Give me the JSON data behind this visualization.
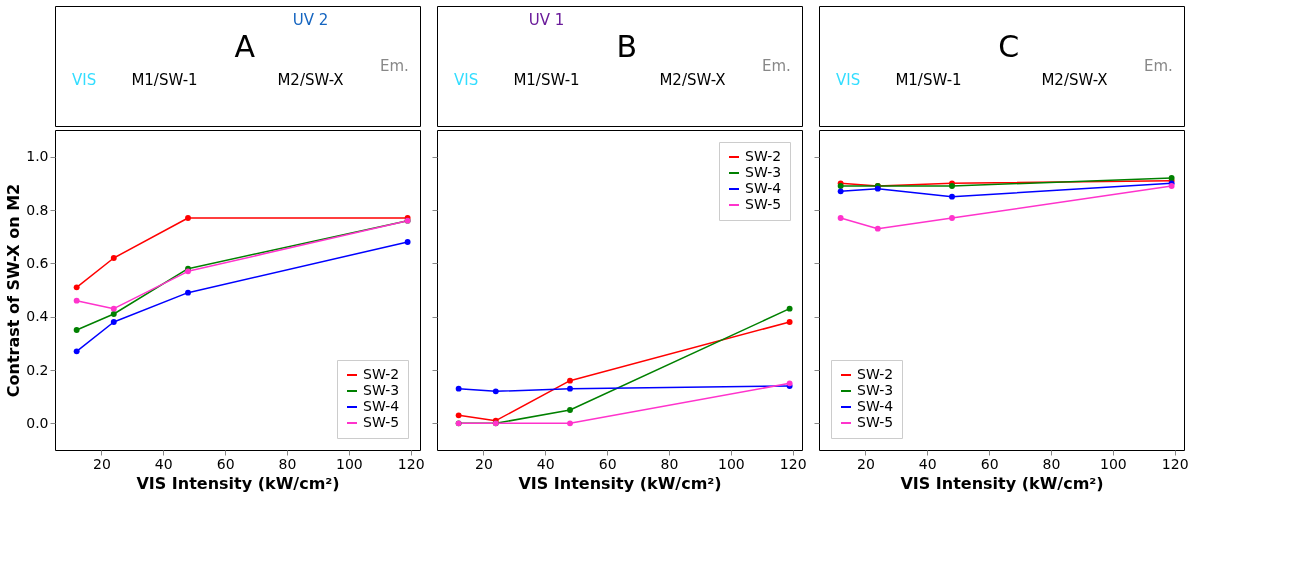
{
  "chart_data": [
    {
      "type": "line",
      "title": "A",
      "annotations": [
        "VIS",
        "M1/SW-1",
        "M2/SW-X",
        "Em.",
        "UV 2"
      ],
      "xlabel": "VIS Intensity (kW/cm²)",
      "ylabel": "Contrast of SW-X on M2",
      "x": [
        12,
        24,
        48,
        119
      ],
      "xlim": [
        5,
        123
      ],
      "ylim": [
        -0.1,
        1.1
      ],
      "xticks": [
        20,
        40,
        60,
        80,
        100,
        120
      ],
      "yticks": [
        {
          "value": 0,
          "label": "0.0"
        },
        0.2,
        0.4,
        0.6,
        0.8,
        {
          "value": 1,
          "label": "1.0"
        }
      ],
      "legend": "bottom right",
      "marker": "circle",
      "series": [
        {
          "name": "SW-2",
          "color": "#ff0000",
          "values": [
            0.51,
            0.62,
            0.77,
            0.77
          ]
        },
        {
          "name": "SW-3",
          "color": "#008000",
          "values": [
            0.35,
            0.41,
            0.58,
            0.76
          ]
        },
        {
          "name": "SW-4",
          "color": "#0000ff",
          "values": [
            0.27,
            0.38,
            0.49,
            0.68
          ]
        },
        {
          "name": "SW-5",
          "color": "#ff33cc",
          "values": [
            0.46,
            0.43,
            0.57,
            0.76
          ]
        }
      ]
    },
    {
      "type": "line",
      "title": "B",
      "annotations": [
        "VIS",
        "M1/SW-1",
        "M2/SW-X",
        "Em.",
        "UV 1"
      ],
      "xlabel": "VIS Intensity (kW/cm²)",
      "x": [
        12,
        24,
        48,
        119
      ],
      "xlim": [
        5,
        123
      ],
      "ylim": [
        -0.1,
        1.1
      ],
      "xticks": [
        20,
        40,
        60,
        80,
        100,
        120
      ],
      "tick_labels": "x",
      "legend": "top right",
      "marker": "circle",
      "series": [
        {
          "name": "SW-2",
          "color": "#ff0000",
          "values": [
            0.03,
            0.01,
            0.16,
            0.38
          ]
        },
        {
          "name": "SW-3",
          "color": "#008000",
          "values": [
            0.0,
            0.0,
            0.05,
            0.43
          ]
        },
        {
          "name": "SW-4",
          "color": "#0000ff",
          "values": [
            0.13,
            0.12,
            0.13,
            0.14
          ]
        },
        {
          "name": "SW-5",
          "color": "#ff33cc",
          "values": [
            0.0,
            0.0,
            0.0,
            0.15
          ]
        }
      ]
    },
    {
      "type": "line",
      "title": "C",
      "annotations": [
        "VIS",
        "M1/SW-1",
        "M2/SW-X",
        "Em."
      ],
      "xlabel": "VIS Intensity (kW/cm²)",
      "x": [
        12,
        24,
        48,
        119
      ],
      "xlim": [
        5,
        123
      ],
      "ylim": [
        -0.1,
        1.1
      ],
      "xticks": [
        20,
        40,
        60,
        80,
        100,
        120
      ],
      "tick_labels": "x",
      "legend": "bottom left",
      "marker": "circle",
      "series": [
        {
          "name": "SW-2",
          "color": "#ff0000",
          "values": [
            0.9,
            0.89,
            0.9,
            0.91
          ]
        },
        {
          "name": "SW-3",
          "color": "#008000",
          "values": [
            0.89,
            0.89,
            0.89,
            0.92
          ]
        },
        {
          "name": "SW-4",
          "color": "#0000ff",
          "values": [
            0.87,
            0.88,
            0.85,
            0.9
          ]
        },
        {
          "name": "SW-5",
          "color": "#ff33cc",
          "values": [
            0.77,
            0.73,
            0.77,
            0.89
          ]
        }
      ]
    }
  ]
}
